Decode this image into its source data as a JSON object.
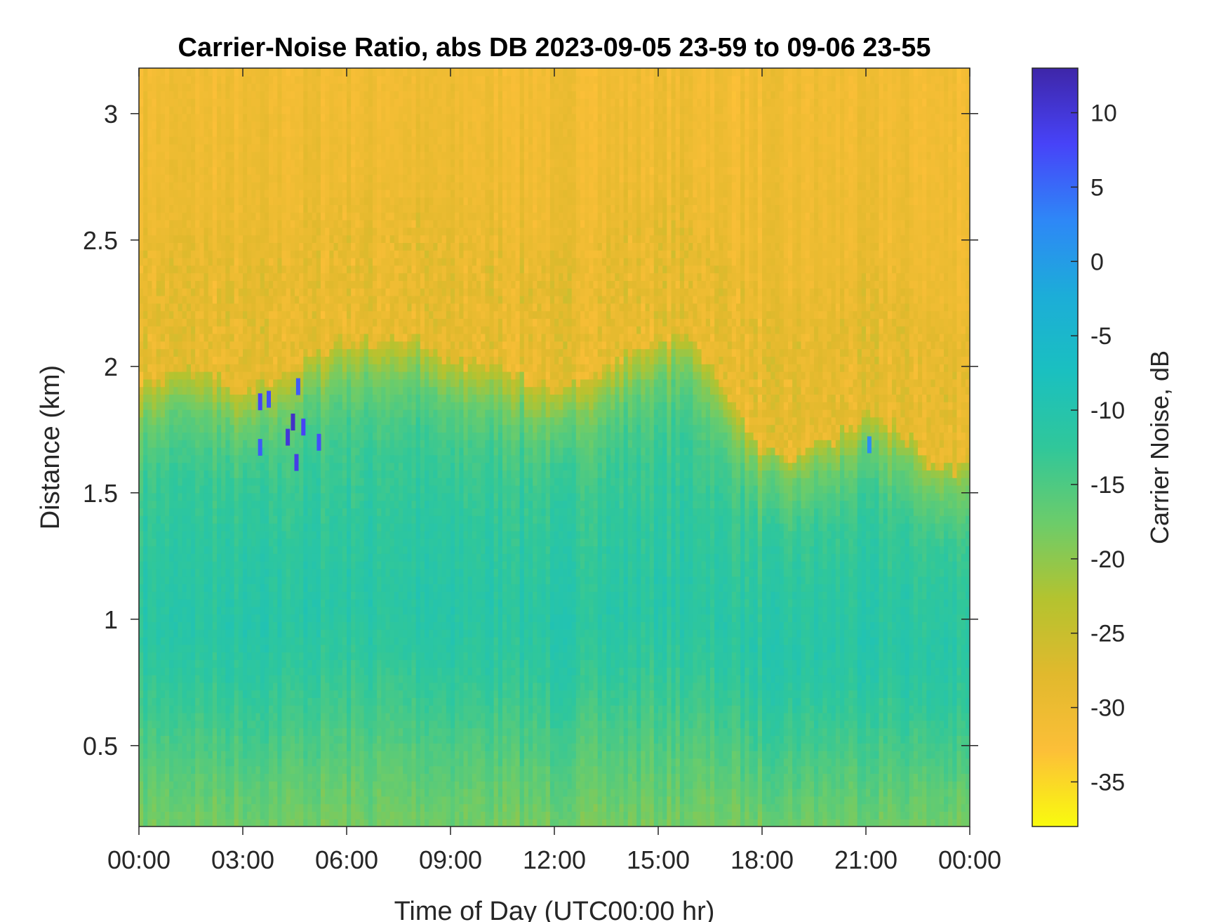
{
  "chart_data": {
    "type": "heatmap",
    "title": "Carrier-Noise Ratio, abs DB 2023-09-05 23-59 to 09-06 23-55",
    "xlabel": "Time of Day (UTC00:00 hr)",
    "ylabel": "Distance (km)",
    "x_range_hours": [
      0,
      24
    ],
    "x_ticks": [
      {
        "value": 0,
        "label": "00:00"
      },
      {
        "value": 3,
        "label": "03:00"
      },
      {
        "value": 6,
        "label": "06:00"
      },
      {
        "value": 9,
        "label": "09:00"
      },
      {
        "value": 12,
        "label": "12:00"
      },
      {
        "value": 15,
        "label": "15:00"
      },
      {
        "value": 18,
        "label": "18:00"
      },
      {
        "value": 21,
        "label": "21:00"
      },
      {
        "value": 24,
        "label": "00:00"
      }
    ],
    "ylim": [
      0.18,
      3.18
    ],
    "y_ticks": [
      {
        "value": 0.5,
        "label": "0.5"
      },
      {
        "value": 1,
        "label": "1"
      },
      {
        "value": 1.5,
        "label": "1.5"
      },
      {
        "value": 2,
        "label": "2"
      },
      {
        "value": 2.5,
        "label": "2.5"
      },
      {
        "value": 3,
        "label": "3"
      }
    ],
    "colorbar": {
      "label": "Carrier Noise, dB",
      "range": [
        -38,
        13
      ],
      "ticks": [
        {
          "value": 10,
          "label": "10"
        },
        {
          "value": 5,
          "label": "5"
        },
        {
          "value": 0,
          "label": "0"
        },
        {
          "value": -5,
          "label": "-5"
        },
        {
          "value": -10,
          "label": "-10"
        },
        {
          "value": -15,
          "label": "-15"
        },
        {
          "value": -20,
          "label": "-20"
        },
        {
          "value": -25,
          "label": "-25"
        },
        {
          "value": -30,
          "label": "-30"
        },
        {
          "value": -35,
          "label": "-35"
        }
      ],
      "colormap": [
        "#3e26a8",
        "#4743f8",
        "#2e87f7",
        "#1cadd8",
        "#1ac0c0",
        "#30c79a",
        "#6ccc6a",
        "#b4c32f",
        "#e1b92d",
        "#fcbf38",
        "#f9fb0e"
      ]
    },
    "signal_top_km_by_hour": [
      {
        "hour": 0,
        "top_km": 1.88
      },
      {
        "hour": 1,
        "top_km": 1.92
      },
      {
        "hour": 2,
        "top_km": 1.92
      },
      {
        "hour": 3,
        "top_km": 1.85
      },
      {
        "hour": 4,
        "top_km": 1.9
      },
      {
        "hour": 5,
        "top_km": 1.98
      },
      {
        "hour": 6,
        "top_km": 2.05
      },
      {
        "hour": 7,
        "top_km": 2.05
      },
      {
        "hour": 8,
        "top_km": 2.05
      },
      {
        "hour": 9,
        "top_km": 1.98
      },
      {
        "hour": 10,
        "top_km": 1.95
      },
      {
        "hour": 11,
        "top_km": 1.92
      },
      {
        "hour": 12,
        "top_km": 1.85
      },
      {
        "hour": 13,
        "top_km": 1.9
      },
      {
        "hour": 14,
        "top_km": 1.98
      },
      {
        "hour": 15,
        "top_km": 2.05
      },
      {
        "hour": 16,
        "top_km": 2.05
      },
      {
        "hour": 17,
        "top_km": 1.85
      },
      {
        "hour": 18,
        "top_km": 1.6
      },
      {
        "hour": 19,
        "top_km": 1.6
      },
      {
        "hour": 20,
        "top_km": 1.65
      },
      {
        "hour": 21,
        "top_km": 1.75
      },
      {
        "hour": 22,
        "top_km": 1.7
      },
      {
        "hour": 23,
        "top_km": 1.55
      },
      {
        "hour": 24,
        "top_km": 1.55
      }
    ],
    "cnr_profile_by_distance": [
      {
        "km": 0.2,
        "db": -18
      },
      {
        "km": 0.5,
        "db": -15
      },
      {
        "km": 0.8,
        "db": -12
      },
      {
        "km": 1.0,
        "db": -11
      },
      {
        "km": 1.3,
        "db": -12
      },
      {
        "km": 1.5,
        "db": -13
      },
      {
        "km": 1.8,
        "db": -16
      },
      {
        "km": 2.0,
        "db": -23
      },
      {
        "km": 2.3,
        "db": -27
      },
      {
        "km": 2.6,
        "db": -30
      },
      {
        "km": 3.18,
        "db": -31
      }
    ],
    "strong_returns": [
      {
        "hour": 3.5,
        "km": 1.86,
        "db": 8
      },
      {
        "hour": 3.5,
        "km": 1.68,
        "db": 6
      },
      {
        "hour": 3.75,
        "km": 1.87,
        "db": 7
      },
      {
        "hour": 4.3,
        "km": 1.72,
        "db": 10
      },
      {
        "hour": 4.45,
        "km": 1.78,
        "db": 11
      },
      {
        "hour": 4.55,
        "km": 1.62,
        "db": 9
      },
      {
        "hour": 4.6,
        "km": 1.92,
        "db": 6
      },
      {
        "hour": 4.75,
        "km": 1.76,
        "db": 8
      },
      {
        "hour": 5.2,
        "km": 1.7,
        "db": 7
      },
      {
        "hour": 21.1,
        "km": 1.69,
        "db": 2
      }
    ]
  }
}
